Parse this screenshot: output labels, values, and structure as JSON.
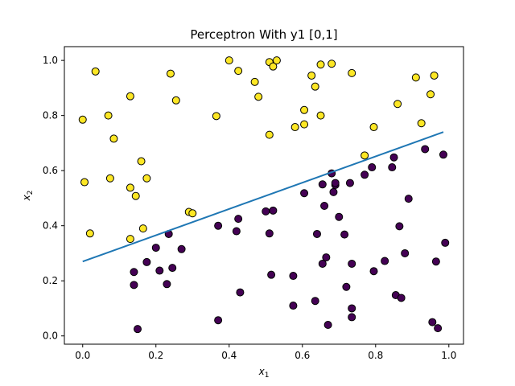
{
  "chart_data": {
    "type": "scatter",
    "title": "Perceptron With y1 [0,1]",
    "xlabel": "x",
    "xlabel_sub": "1",
    "ylabel": "x",
    "ylabel_sub": "2",
    "xlim": [
      -0.05,
      1.04
    ],
    "ylim": [
      -0.03,
      1.05
    ],
    "xticks": [
      "0.0",
      "0.2",
      "0.4",
      "0.6",
      "0.8",
      "1.0"
    ],
    "yticks": [
      "0.0",
      "0.2",
      "0.4",
      "0.6",
      "0.8",
      "1.0"
    ],
    "grid": false,
    "colors": {
      "class_1": "#fde725",
      "class_0": "#440154",
      "line": "#1f77b4",
      "marker_edge": "#000000"
    },
    "decision_line": {
      "x": [
        0.0,
        0.985
      ],
      "y": [
        0.27,
        0.74
      ]
    },
    "series": [
      {
        "class": 1,
        "points": [
          [
            0.0,
            0.785
          ],
          [
            0.035,
            0.96
          ],
          [
            0.005,
            0.558
          ],
          [
            0.02,
            0.372
          ],
          [
            0.07,
            0.8
          ],
          [
            0.075,
            0.572
          ],
          [
            0.085,
            0.716
          ],
          [
            0.13,
            0.87
          ],
          [
            0.13,
            0.538
          ],
          [
            0.145,
            0.508
          ],
          [
            0.16,
            0.634
          ],
          [
            0.165,
            0.39
          ],
          [
            0.175,
            0.572
          ],
          [
            0.13,
            0.352
          ],
          [
            0.24,
            0.952
          ],
          [
            0.255,
            0.855
          ],
          [
            0.29,
            0.45
          ],
          [
            0.3,
            0.445
          ],
          [
            0.365,
            0.798
          ],
          [
            0.4,
            1.0
          ],
          [
            0.425,
            0.962
          ],
          [
            0.47,
            0.922
          ],
          [
            0.48,
            0.868
          ],
          [
            0.51,
            0.994
          ],
          [
            0.52,
            0.978
          ],
          [
            0.53,
            1.0
          ],
          [
            0.51,
            0.73
          ],
          [
            0.58,
            0.758
          ],
          [
            0.605,
            0.768
          ],
          [
            0.605,
            0.82
          ],
          [
            0.625,
            0.945
          ],
          [
            0.635,
            0.905
          ],
          [
            0.65,
            0.985
          ],
          [
            0.65,
            0.8
          ],
          [
            0.68,
            0.988
          ],
          [
            0.735,
            0.954
          ],
          [
            0.77,
            0.655
          ],
          [
            0.795,
            0.758
          ],
          [
            0.86,
            0.842
          ],
          [
            0.91,
            0.938
          ],
          [
            0.925,
            0.772
          ],
          [
            0.95,
            0.877
          ],
          [
            0.96,
            0.945
          ]
        ]
      },
      {
        "class": 0,
        "points": [
          [
            0.15,
            0.025
          ],
          [
            0.14,
            0.185
          ],
          [
            0.14,
            0.232
          ],
          [
            0.175,
            0.268
          ],
          [
            0.2,
            0.32
          ],
          [
            0.21,
            0.237
          ],
          [
            0.23,
            0.188
          ],
          [
            0.235,
            0.37
          ],
          [
            0.245,
            0.247
          ],
          [
            0.27,
            0.315
          ],
          [
            0.37,
            0.057
          ],
          [
            0.37,
            0.4
          ],
          [
            0.42,
            0.38
          ],
          [
            0.425,
            0.425
          ],
          [
            0.43,
            0.158
          ],
          [
            0.5,
            0.452
          ],
          [
            0.51,
            0.372
          ],
          [
            0.52,
            0.455
          ],
          [
            0.515,
            0.222
          ],
          [
            0.575,
            0.11
          ],
          [
            0.575,
            0.218
          ],
          [
            0.605,
            0.518
          ],
          [
            0.635,
            0.127
          ],
          [
            0.64,
            0.37
          ],
          [
            0.655,
            0.55
          ],
          [
            0.66,
            0.472
          ],
          [
            0.655,
            0.262
          ],
          [
            0.665,
            0.285
          ],
          [
            0.67,
            0.04
          ],
          [
            0.68,
            0.59
          ],
          [
            0.685,
            0.522
          ],
          [
            0.69,
            0.548
          ],
          [
            0.69,
            0.555
          ],
          [
            0.7,
            0.432
          ],
          [
            0.715,
            0.368
          ],
          [
            0.72,
            0.178
          ],
          [
            0.73,
            0.555
          ],
          [
            0.735,
            0.262
          ],
          [
            0.735,
            0.1
          ],
          [
            0.735,
            0.068
          ],
          [
            0.77,
            0.585
          ],
          [
            0.79,
            0.612
          ],
          [
            0.795,
            0.235
          ],
          [
            0.825,
            0.272
          ],
          [
            0.845,
            0.612
          ],
          [
            0.85,
            0.648
          ],
          [
            0.855,
            0.148
          ],
          [
            0.865,
            0.398
          ],
          [
            0.87,
            0.138
          ],
          [
            0.88,
            0.3
          ],
          [
            0.89,
            0.498
          ],
          [
            0.935,
            0.678
          ],
          [
            0.955,
            0.05
          ],
          [
            0.965,
            0.27
          ],
          [
            0.97,
            0.028
          ],
          [
            0.985,
            0.658
          ],
          [
            0.99,
            0.338
          ]
        ]
      }
    ]
  }
}
